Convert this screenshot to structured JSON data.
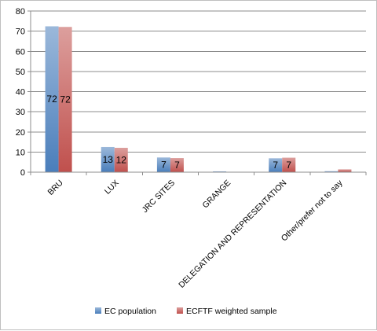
{
  "chart_data": {
    "type": "bar",
    "title": "",
    "xlabel": "",
    "ylabel": "",
    "ylim": [
      0,
      80
    ],
    "yticks": [
      0,
      10,
      20,
      30,
      40,
      50,
      60,
      70,
      80
    ],
    "grid": true,
    "legend_position": "bottom",
    "categories": [
      "BRU",
      "LUX",
      "JRC SITES",
      "GRANGE",
      "DELEGATION AND REPRESENTATION",
      "Other/prefer not to say"
    ],
    "series": [
      {
        "name": "EC population",
        "values": [
          72.4,
          12.5,
          7.3,
          0.4,
          6.9,
          0.5
        ],
        "labels": [
          "72",
          "13",
          "7",
          "",
          "7",
          ""
        ],
        "color": "#4a7ebb"
      },
      {
        "name": "ECFTF weighted sample",
        "values": [
          72.1,
          12.1,
          7.0,
          0.2,
          7.2,
          1.4
        ],
        "labels": [
          "72",
          "12",
          "7",
          "",
          "7",
          ""
        ],
        "color": "#c0504d"
      }
    ]
  }
}
